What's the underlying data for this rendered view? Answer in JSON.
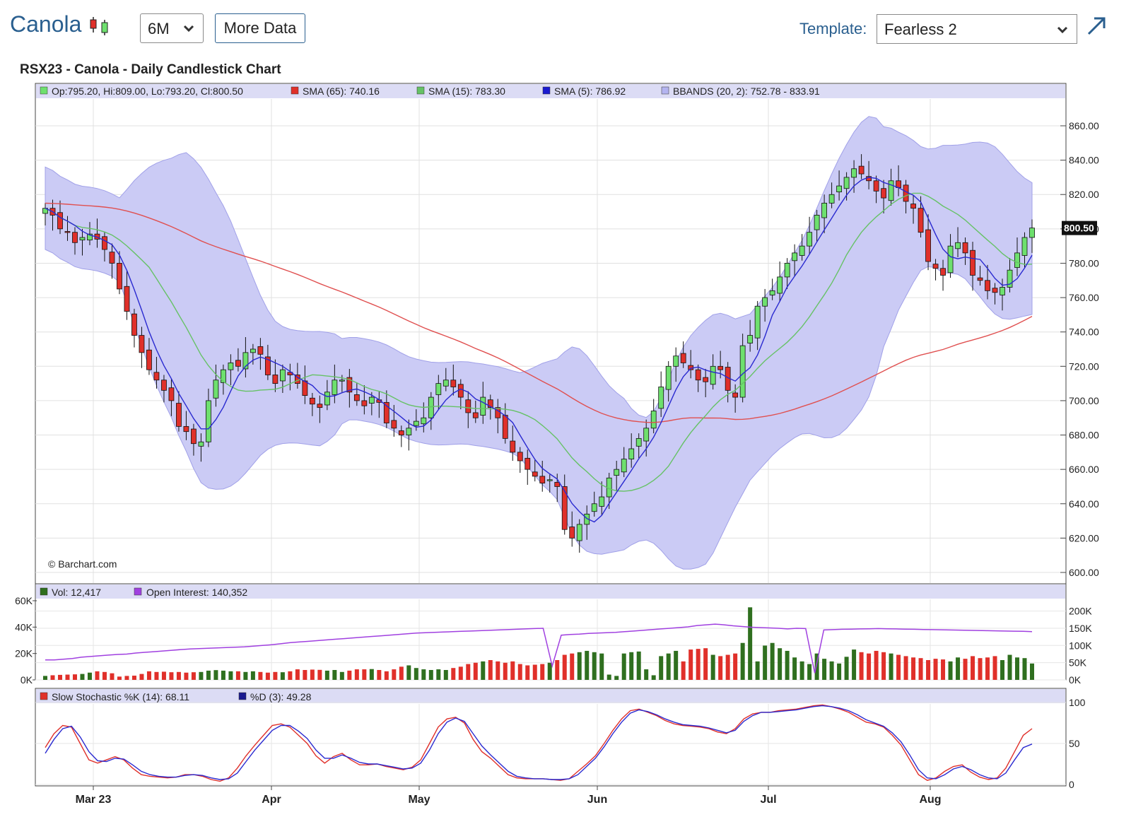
{
  "header": {
    "title": "Canola",
    "period_value": "6M",
    "more_data_label": "More Data",
    "template_label": "Template:",
    "template_value": "Fearless 2"
  },
  "chart_title": "RSX23 - Canola - Daily Candlestick Chart",
  "colors": {
    "up": "#6ee06e",
    "down": "#e0302a",
    "sma65": "#e05050",
    "sma15": "#66c266",
    "sma5": "#2a2ad0",
    "bbands_fill": "#cbcbf5",
    "bbands_stroke": "#a0a0e8",
    "vol_up": "#2f6f1f",
    "vol_down": "#e0302a",
    "open_interest": "#a040e0",
    "stoch_k": "#e0302a",
    "stoch_d": "#2a2ad0"
  },
  "chart_data": {
    "type": "candlestick",
    "price_panel": {
      "legend": {
        "ohlc": "Op:795.20, Hi:809.00, Lo:793.20, Cl:800.50",
        "sma65": "SMA (65): 740.16",
        "sma15": "SMA (15): 783.30",
        "sma5": "SMA (5): 786.92",
        "bbands": "BBANDS (20, 2): 752.78 - 833.91"
      },
      "ylim": [
        600,
        870
      ],
      "yticks": [
        "860.00",
        "840.00",
        "820.00",
        "800.00",
        "780.00",
        "760.00",
        "740.00",
        "720.00",
        "700.00",
        "680.00",
        "660.00",
        "640.00",
        "620.00",
        "600.00"
      ],
      "ytick_values": [
        860,
        840,
        820,
        800,
        780,
        760,
        740,
        720,
        700,
        680,
        660,
        640,
        620,
        600
      ],
      "last_price_label": "800.50",
      "last_price": 800.5,
      "closes": [
        812,
        808,
        800,
        798,
        792,
        795,
        797,
        794,
        788,
        780,
        765,
        752,
        738,
        728,
        718,
        712,
        706,
        700,
        685,
        682,
        675,
        676,
        700,
        712,
        718,
        722,
        720,
        728,
        730,
        727,
        715,
        710,
        718,
        715,
        710,
        703,
        698,
        696,
        705,
        712,
        712,
        705,
        700,
        697,
        702,
        699,
        687,
        684,
        680,
        684,
        688,
        690,
        702,
        710,
        712,
        708,
        702,
        693,
        690,
        702,
        696,
        690,
        678,
        670,
        665,
        660,
        656,
        652,
        654,
        650,
        625,
        620,
        628,
        634,
        640,
        644,
        655,
        660,
        666,
        672,
        678,
        684,
        694,
        708,
        720,
        726,
        722,
        718,
        712,
        711,
        720,
        718,
        706,
        702,
        732,
        738,
        755,
        760,
        764,
        772,
        780,
        786,
        790,
        798,
        808,
        815,
        820,
        825,
        830,
        835,
        832,
        828,
        822,
        818,
        828,
        824,
        816,
        812,
        798,
        781,
        777,
        773,
        790,
        792,
        786,
        773,
        770,
        764,
        763,
        766,
        776,
        786,
        795,
        800.5
      ],
      "copyright": "© Barchart.com"
    },
    "volume_panel": {
      "legend": {
        "vol": "Vol: 12,417",
        "open_interest": "Open Interest: 140,352"
      },
      "left_ticks": [
        "60K",
        "40K",
        "20K",
        "0K"
      ],
      "left_tick_values": [
        60000,
        40000,
        20000,
        0
      ],
      "right_ticks": [
        "200K",
        "150K",
        "100K",
        "50K",
        "0K"
      ],
      "right_tick_values": [
        200000,
        150000,
        100000,
        50000,
        0
      ],
      "volume": [
        3000,
        3500,
        3800,
        4000,
        4200,
        4500,
        5500,
        6500,
        6000,
        5000,
        2500,
        3000,
        3200,
        4500,
        6500,
        6000,
        6200,
        5800,
        6000,
        5500,
        5800,
        6000,
        7000,
        7400,
        7000,
        6500,
        6500,
        6000,
        6500,
        6000,
        5500,
        6000,
        5800,
        6500,
        8000,
        7500,
        7800,
        7600,
        7000,
        7500,
        6000,
        7000,
        8000,
        8000,
        8200,
        7500,
        6500,
        8000,
        10000,
        11000,
        9000,
        8000,
        7500,
        8000,
        7500,
        9000,
        10000,
        12000,
        13000,
        14000,
        15000,
        14000,
        13000,
        14000,
        12000,
        11000,
        11500,
        12000,
        13000,
        15000,
        19000,
        20000,
        21000,
        22000,
        21000,
        20000,
        4000,
        3000,
        20000,
        21000,
        21500,
        8000,
        3500,
        18000,
        20000,
        22000,
        14000,
        23000,
        23500,
        24000,
        19000,
        18000,
        19000,
        20000,
        28000,
        55000,
        14000,
        26000,
        28000,
        24000,
        22000,
        17000,
        14000,
        12000,
        20000,
        16000,
        14000,
        12417,
        17500,
        23000,
        21000,
        20000,
        22000,
        21000,
        20000,
        19000,
        18000,
        17000,
        16500,
        15000,
        16000,
        15500,
        14000,
        17000,
        16000,
        18000,
        16500,
        17000,
        18000,
        15000,
        19000,
        17000,
        16500,
        12417
      ],
      "open_interest": [
        58000,
        58000,
        60000,
        62000,
        66000,
        68000,
        70000,
        72000,
        74000,
        75000,
        78000,
        80000,
        82000,
        84000,
        86000,
        88000,
        90000,
        91000,
        92000,
        93000,
        94000,
        95000,
        96000,
        98000,
        100000,
        102000,
        105000,
        108000,
        110000,
        112000,
        114000,
        116000,
        118000,
        120000,
        122000,
        124000,
        126000,
        128000,
        130000,
        132000,
        134000,
        136000,
        137000,
        138000,
        139000,
        140000,
        141000,
        142000,
        143000,
        144000,
        145000,
        146000,
        147000,
        148000,
        149000,
        150000,
        40000,
        130000,
        132000,
        133000,
        135000,
        136000,
        137000,
        138000,
        140000,
        142000,
        144000,
        146000,
        148000,
        150000,
        152000,
        154000,
        158000,
        160000,
        162000,
        160000,
        157000,
        155000,
        153000,
        152000,
        151000,
        150000,
        148000,
        150000,
        149000,
        20000,
        145000,
        146000,
        147000,
        147500,
        148000,
        148500,
        149000,
        148500,
        148000,
        147500,
        147000,
        146500,
        146000,
        145500,
        145000,
        144500,
        144000,
        143500,
        143000,
        142500,
        142000,
        141500,
        141000,
        140352
      ]
    },
    "stoch_panel": {
      "legend": {
        "k": "Slow Stochastic %K (14): 68.11",
        "d": "%D (3): 49.28"
      },
      "ylim": [
        0,
        100
      ],
      "yticks": [
        "100",
        "50",
        "0"
      ],
      "ytick_values": [
        100,
        50,
        0
      ],
      "k": [
        45,
        62,
        72,
        70,
        50,
        30,
        26,
        30,
        34,
        30,
        20,
        12,
        10,
        9,
        8,
        9,
        12,
        12,
        10,
        6,
        4,
        8,
        20,
        35,
        48,
        60,
        72,
        74,
        70,
        60,
        50,
        35,
        26,
        34,
        38,
        30,
        24,
        24,
        25,
        22,
        20,
        18,
        21,
        30,
        50,
        70,
        80,
        82,
        75,
        55,
        40,
        32,
        22,
        12,
        8,
        7,
        7,
        7,
        6,
        5,
        7,
        16,
        25,
        35,
        50,
        66,
        80,
        90,
        92,
        88,
        84,
        78,
        74,
        72,
        71,
        70,
        68,
        64,
        62,
        68,
        80,
        86,
        88,
        88,
        90,
        91,
        92,
        94,
        96,
        97,
        95,
        92,
        88,
        82,
        76,
        74,
        70,
        60,
        48,
        30,
        12,
        5,
        8,
        16,
        22,
        24,
        15,
        9,
        6,
        8,
        20,
        40,
        60,
        68.11
      ],
      "d": [
        38,
        55,
        68,
        71,
        58,
        40,
        29,
        28,
        32,
        31,
        24,
        16,
        12,
        10,
        9,
        9,
        11,
        12,
        11,
        8,
        6,
        7,
        14,
        28,
        42,
        54,
        66,
        72,
        72,
        65,
        56,
        42,
        32,
        32,
        36,
        32,
        27,
        25,
        25,
        23,
        21,
        19,
        20,
        26,
        42,
        62,
        76,
        81,
        77,
        62,
        47,
        36,
        26,
        16,
        10,
        8,
        7,
        7,
        6,
        6,
        7,
        12,
        22,
        32,
        46,
        62,
        76,
        87,
        91,
        89,
        85,
        80,
        76,
        73,
        72,
        71,
        69,
        66,
        63,
        66,
        77,
        84,
        88,
        88,
        89,
        90,
        91,
        93,
        95,
        96,
        95,
        93,
        90,
        85,
        79,
        75,
        71,
        63,
        52,
        36,
        18,
        8,
        7,
        12,
        19,
        22,
        18,
        12,
        8,
        7,
        14,
        30,
        45,
        49.28
      ]
    },
    "x_labels": [
      "Mar 23",
      "Apr",
      "May",
      "Jun",
      "Jul",
      "Aug"
    ]
  }
}
